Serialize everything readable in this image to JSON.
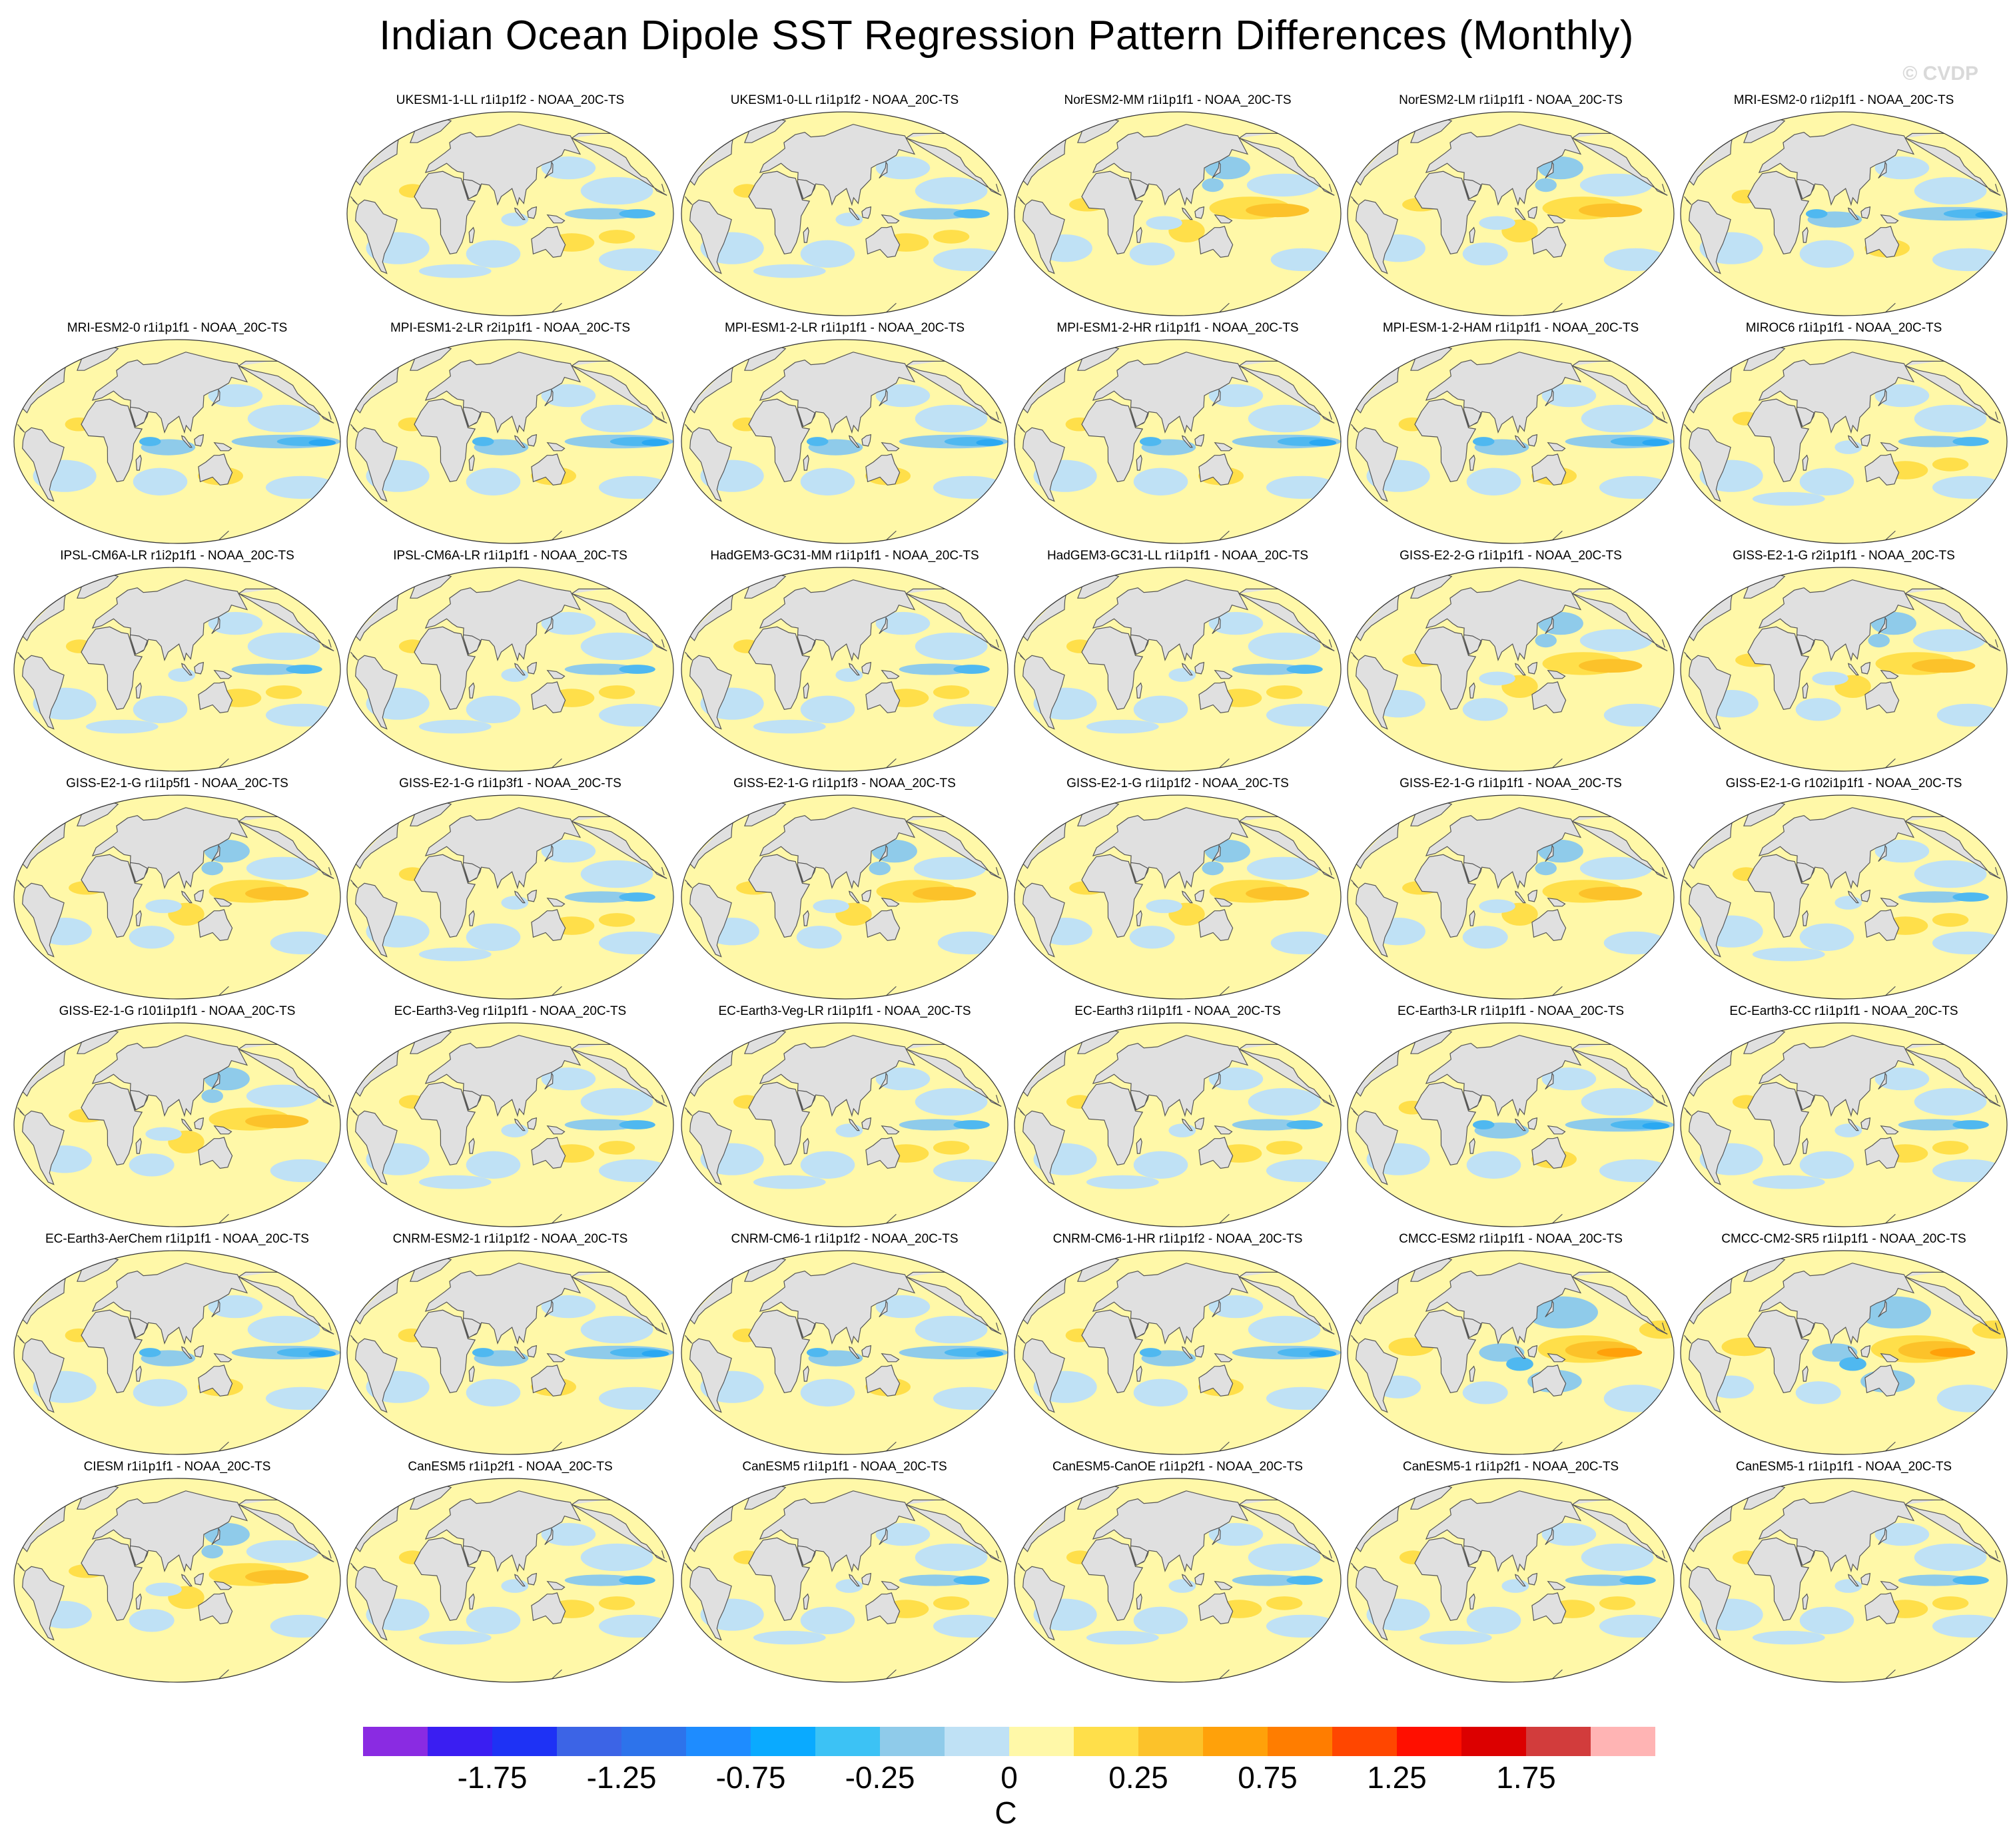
{
  "title": "Indian Ocean Dipole SST Regression Pattern Differences (Monthly)",
  "watermark": "© CVDP",
  "colors": {
    "land": "#e0e0e0",
    "base_warm": "#fff8a8",
    "base_cool": "#bfe1f5",
    "warm1": "#ffdf4a",
    "warm2": "#fcc22a",
    "warm3": "#ffa10a",
    "cool1": "#8fcbea",
    "cool2": "#4fb8f0",
    "cool3": "#2aa8f2"
  },
  "panels": [
    {
      "label": "UKESM1-1-LL r1i1p1f2 - NOAA_20C-TS",
      "pattern": "neutral"
    },
    {
      "label": "UKESM1-0-LL r1i1p1f2 - NOAA_20C-TS",
      "pattern": "neutral"
    },
    {
      "label": "NorESM2-MM r1i1p1f1 - NOAA_20C-TS",
      "pattern": "warm"
    },
    {
      "label": "NorESM2-LM r1i1p1f1 - NOAA_20C-TS",
      "pattern": "warm"
    },
    {
      "label": "MRI-ESM2-0 r1i2p1f1 - NOAA_20C-TS",
      "pattern": "cool"
    },
    {
      "label": "MRI-ESM2-0 r1i1p1f1 - NOAA_20C-TS",
      "pattern": "cool"
    },
    {
      "label": "MPI-ESM1-2-LR r2i1p1f1 - NOAA_20C-TS",
      "pattern": "cool"
    },
    {
      "label": "MPI-ESM1-2-LR r1i1p1f1 - NOAA_20C-TS",
      "pattern": "cool"
    },
    {
      "label": "MPI-ESM1-2-HR r1i1p1f1 - NOAA_20C-TS",
      "pattern": "cool"
    },
    {
      "label": "MPI-ESM-1-2-HAM r1i1p1f1 - NOAA_20C-TS",
      "pattern": "cool"
    },
    {
      "label": "MIROC6 r1i1p1f1 - NOAA_20C-TS",
      "pattern": "neutral"
    },
    {
      "label": "IPSL-CM6A-LR r1i2p1f1 - NOAA_20C-TS",
      "pattern": "neutral"
    },
    {
      "label": "IPSL-CM6A-LR r1i1p1f1 - NOAA_20C-TS",
      "pattern": "neutral"
    },
    {
      "label": "HadGEM3-GC31-MM r1i1p1f1 - NOAA_20C-TS",
      "pattern": "neutral"
    },
    {
      "label": "HadGEM3-GC31-LL r1i1p1f1 - NOAA_20C-TS",
      "pattern": "neutral"
    },
    {
      "label": "GISS-E2-2-G r1i1p1f1 - NOAA_20C-TS",
      "pattern": "warm"
    },
    {
      "label": "GISS-E2-1-G r2i1p1f1 - NOAA_20C-TS",
      "pattern": "warm"
    },
    {
      "label": "GISS-E2-1-G r1i1p5f1 - NOAA_20C-TS",
      "pattern": "warm"
    },
    {
      "label": "GISS-E2-1-G r1i1p3f1 - NOAA_20C-TS",
      "pattern": "neutral"
    },
    {
      "label": "GISS-E2-1-G r1i1p1f3 - NOAA_20C-TS",
      "pattern": "warm"
    },
    {
      "label": "GISS-E2-1-G r1i1p1f2 - NOAA_20C-TS",
      "pattern": "warm"
    },
    {
      "label": "GISS-E2-1-G r1i1p1f1 - NOAA_20C-TS",
      "pattern": "warm"
    },
    {
      "label": "GISS-E2-1-G r102i1p1f1 - NOAA_20C-TS",
      "pattern": "neutral"
    },
    {
      "label": "GISS-E2-1-G r101i1p1f1 - NOAA_20C-TS",
      "pattern": "warm"
    },
    {
      "label": "EC-Earth3-Veg r1i1p1f1 - NOAA_20C-TS",
      "pattern": "neutral"
    },
    {
      "label": "EC-Earth3-Veg-LR r1i1p1f1 - NOAA_20C-TS",
      "pattern": "neutral"
    },
    {
      "label": "EC-Earth3 r1i1p1f1 - NOAA_20C-TS",
      "pattern": "neutral"
    },
    {
      "label": "EC-Earth3-LR r1i1p1f1 - NOAA_20C-TS",
      "pattern": "cool"
    },
    {
      "label": "EC-Earth3-CC r1i1p1f1 - NOAA_20C-TS",
      "pattern": "neutral"
    },
    {
      "label": "EC-Earth3-AerChem r1i1p1f1 - NOAA_20C-TS",
      "pattern": "cool"
    },
    {
      "label": "CNRM-ESM2-1 r1i1p1f2 - NOAA_20C-TS",
      "pattern": "cool"
    },
    {
      "label": "CNRM-CM6-1 r1i1p1f2 - NOAA_20C-TS",
      "pattern": "cool"
    },
    {
      "label": "CNRM-CM6-1-HR r1i1p1f2 - NOAA_20C-TS",
      "pattern": "cool"
    },
    {
      "label": "CMCC-ESM2 r1i1p1f1 - NOAA_20C-TS",
      "pattern": "strong"
    },
    {
      "label": "CMCC-CM2-SR5 r1i1p1f1 - NOAA_20C-TS",
      "pattern": "strong"
    },
    {
      "label": "CIESM r1i1p1f1 - NOAA_20C-TS",
      "pattern": "warm"
    },
    {
      "label": "CanESM5 r1i1p2f1 - NOAA_20C-TS",
      "pattern": "neutral"
    },
    {
      "label": "CanESM5 r1i1p1f1 - NOAA_20C-TS",
      "pattern": "neutral"
    },
    {
      "label": "CanESM5-CanOE r1i1p2f1 - NOAA_20C-TS",
      "pattern": "neutral"
    },
    {
      "label": "CanESM5-1 r1i1p2f1 - NOAA_20C-TS",
      "pattern": "neutral"
    },
    {
      "label": "CanESM5-1 r1i1p1f1 - NOAA_20C-TS",
      "pattern": "neutral"
    }
  ],
  "colorbar": {
    "colors": [
      "#8a2be2",
      "#3a1ef2",
      "#1e32f5",
      "#3c64e6",
      "#2d73eb",
      "#1e8cff",
      "#0aaaff",
      "#3cc2f5",
      "#8fcbea",
      "#bfe1f5",
      "#fff8a8",
      "#ffdf4a",
      "#fcc22a",
      "#ffa10a",
      "#ff7d00",
      "#ff4600",
      "#ff0f00",
      "#dc0000",
      "#d23c3c",
      "#ffb4b4"
    ],
    "tick_labels": [
      "-1.75",
      "-1.25",
      "-0.75",
      "-0.25",
      "0",
      "0.25",
      "0.75",
      "1.25",
      "1.75"
    ],
    "tick_boundary_index": [
      2,
      4,
      6,
      8,
      10,
      12,
      14,
      16,
      18
    ],
    "unit": "C"
  }
}
